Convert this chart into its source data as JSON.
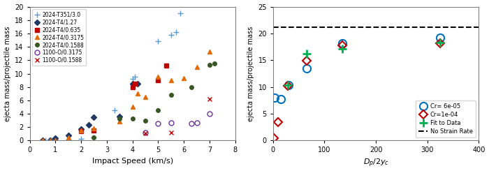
{
  "left": {
    "series": [
      {
        "label": "2024-T351/3.0",
        "color": "#5b9bd5",
        "marker": "+",
        "markersize": 6,
        "filled": true,
        "x": [
          0.5,
          0.6,
          0.75,
          1.0,
          1.5,
          2.0,
          2.5,
          3.3,
          4.0,
          4.1,
          5.0,
          5.5,
          5.7,
          5.85
        ],
        "y": [
          0.05,
          0.05,
          0.1,
          0.15,
          0.2,
          0.3,
          0.5,
          4.5,
          9.2,
          9.5,
          14.8,
          15.8,
          16.2,
          19.0
        ]
      },
      {
        "label": "2024-T4/1.27",
        "color": "#1f3864",
        "marker": "D",
        "markersize": 4,
        "filled": true,
        "x": [
          0.5,
          0.8,
          1.0,
          1.5,
          2.0,
          2.3,
          2.5,
          3.5,
          4.0,
          4.2
        ],
        "y": [
          0.05,
          0.1,
          0.4,
          0.8,
          1.7,
          2.3,
          3.5,
          3.6,
          8.5,
          8.5
        ]
      },
      {
        "label": "2024-T4/0.635",
        "color": "#c00000",
        "marker": "s",
        "markersize": 5,
        "filled": true,
        "x": [
          2.0,
          2.5,
          4.0,
          4.1,
          5.0,
          5.3
        ],
        "y": [
          1.4,
          1.5,
          8.0,
          8.5,
          9.0,
          11.2
        ]
      },
      {
        "label": "2024-T4/0.3175",
        "color": "#e36c09",
        "marker": "^",
        "markersize": 5,
        "filled": true,
        "x": [
          0.5,
          0.8,
          1.0,
          1.5,
          2.0,
          2.5,
          3.5,
          4.0,
          4.2,
          4.5,
          5.0,
          5.5,
          6.0,
          6.5,
          7.0
        ],
        "y": [
          0.05,
          0.05,
          0.1,
          0.5,
          1.5,
          1.8,
          2.9,
          5.0,
          7.0,
          6.5,
          9.5,
          9.0,
          9.3,
          11.0,
          13.3
        ]
      },
      {
        "label": "2024-T4/0.1588",
        "color": "#375623",
        "marker": "o",
        "markersize": 4,
        "filled": true,
        "x": [
          2.5,
          3.5,
          4.0,
          4.5,
          5.0,
          5.5,
          6.3,
          7.0,
          7.2
        ],
        "y": [
          0.5,
          3.3,
          3.3,
          3.0,
          4.5,
          6.8,
          8.0,
          11.3,
          11.5
        ]
      },
      {
        "label": "1100-O/0.3175",
        "color": "#7030a0",
        "marker": "o",
        "markersize": 5,
        "filled": false,
        "x": [
          4.5,
          5.0,
          5.5,
          6.3,
          6.5,
          7.0
        ],
        "y": [
          1.2,
          2.5,
          2.7,
          2.5,
          2.7,
          4.0
        ]
      },
      {
        "label": "1100-O/0.1588",
        "color": "#c00000",
        "marker": "x",
        "markersize": 5,
        "filled": true,
        "x": [
          4.5,
          5.5,
          7.0
        ],
        "y": [
          1.1,
          1.2,
          6.2
        ]
      }
    ],
    "xlabel": "Impact Speed (km/s)",
    "ylabel": "ejecta mass/projectile mass",
    "xlim": [
      0,
      8
    ],
    "ylim": [
      0,
      20
    ],
    "yticks": [
      0,
      2,
      4,
      6,
      8,
      10,
      12,
      14,
      16,
      18,
      20
    ],
    "xticks": [
      0,
      1,
      2,
      3,
      4,
      5,
      6,
      7,
      8
    ]
  },
  "right": {
    "series_blue_circle": {
      "label": "Cr= 6e-05",
      "color": "#0070c0",
      "x": [
        3,
        15,
        30,
        65,
        135,
        325
      ],
      "y": [
        8.0,
        7.8,
        10.4,
        13.5,
        18.2,
        19.2
      ]
    },
    "series_red_diamond": {
      "label": "Cr=1e-04",
      "color": "#c00000",
      "x": [
        2,
        10,
        28,
        65,
        135,
        325
      ],
      "y": [
        0.5,
        3.5,
        10.2,
        14.9,
        17.8,
        18.2
      ]
    },
    "series_green_plus": {
      "label": "Fit to Data",
      "color": "#00b050",
      "x": [
        28,
        65,
        135,
        325
      ],
      "y": [
        10.3,
        16.2,
        17.1,
        18.3
      ]
    },
    "dashed_line_y": 21.1,
    "dashed_label": "No Strain Rate",
    "ylabel": "ejecta mass/projectile mass",
    "xlim": [
      0,
      400
    ],
    "ylim": [
      0,
      25
    ],
    "yticks": [
      0,
      5,
      10,
      15,
      20,
      25
    ],
    "xticks": [
      0,
      100,
      200,
      300,
      400
    ]
  }
}
